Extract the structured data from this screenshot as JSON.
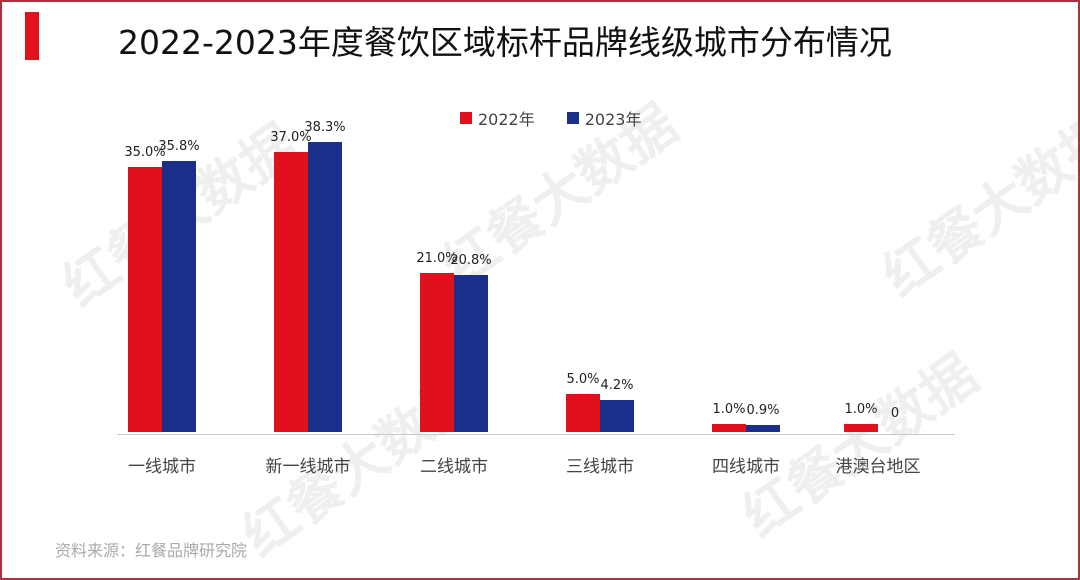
{
  "title": "2022-2023年度餐饮区域标杆品牌线级城市分布情况",
  "source": "资料来源：红餐品牌研究院",
  "watermark": "红餐大数据",
  "colors": {
    "series_2022": "#e0101c",
    "series_2023": "#1a2f8a",
    "accent": "#e0101c",
    "frame": "#b03040"
  },
  "legend": [
    {
      "label": "2022年",
      "color": "#e0101c"
    },
    {
      "label": "2023年",
      "color": "#1a2f8a"
    }
  ],
  "chart_data": {
    "type": "bar",
    "title": "2022-2023年度餐饮区域标杆品牌线级城市分布情况",
    "categories": [
      "一线城市",
      "新一线城市",
      "二线城市",
      "三线城市",
      "四线城市",
      "港澳台地区"
    ],
    "series": [
      {
        "name": "2022年",
        "values": [
          35.0,
          37.0,
          21.0,
          5.0,
          1.0,
          1.0
        ],
        "labels": [
          "35.0%",
          "37.0%",
          "21.0%",
          "5.0%",
          "1.0%",
          "1.0%"
        ]
      },
      {
        "name": "2023年",
        "values": [
          35.8,
          38.3,
          20.8,
          4.2,
          0.9,
          0
        ],
        "labels": [
          "35.8%",
          "38.3%",
          "20.8%",
          "4.2%",
          "0.9%",
          "0"
        ]
      }
    ],
    "xlabel": "",
    "ylabel": "",
    "unit": "%",
    "grid": false,
    "legend_position": "top"
  }
}
